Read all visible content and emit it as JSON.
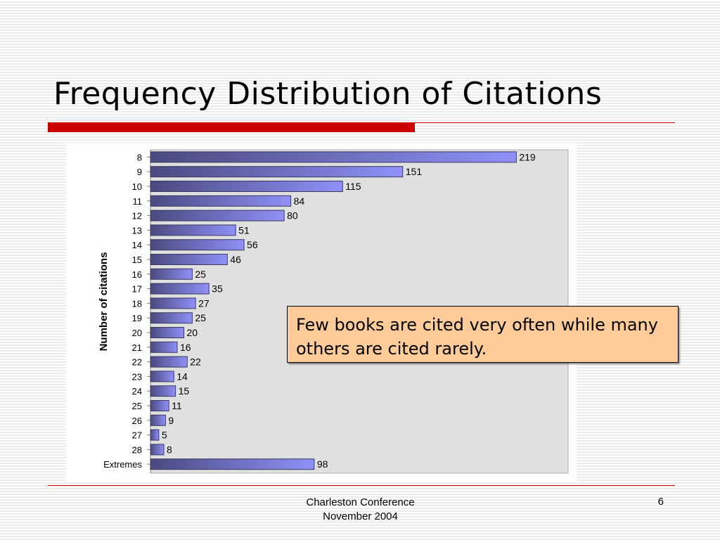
{
  "slide": {
    "title": "Frequency Distribution of Citations",
    "callout_text": "Few books are cited very often while many others are cited rarely.",
    "footer_line1": "Charleston Conference",
    "footer_line2": "November 2004",
    "page_number": "6"
  },
  "colors": {
    "accent_red": "#cc0000",
    "callout_fill": "#ffcc99",
    "plot_area": "#e0e0e0",
    "bar_dark": "#4a4a80",
    "bar_light": "#9090f8"
  },
  "chart_data": {
    "type": "bar",
    "orientation": "horizontal",
    "ylabel": "Number of citations",
    "categories": [
      "8",
      "9",
      "10",
      "11",
      "12",
      "13",
      "14",
      "15",
      "16",
      "17",
      "18",
      "19",
      "20",
      "21",
      "22",
      "23",
      "24",
      "25",
      "26",
      "27",
      "28",
      "Extremes"
    ],
    "values": [
      219,
      151,
      115,
      84,
      80,
      51,
      56,
      46,
      25,
      35,
      27,
      25,
      20,
      16,
      22,
      14,
      15,
      11,
      9,
      5,
      8,
      98
    ],
    "xlim": [
      0,
      250
    ],
    "data_labels": true,
    "grid": false,
    "legend": "none"
  }
}
